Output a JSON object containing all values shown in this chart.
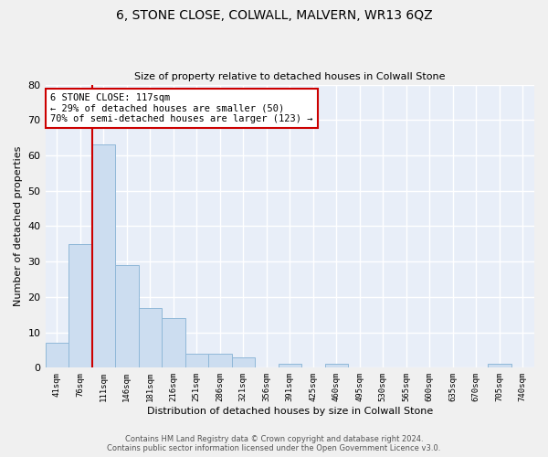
{
  "title": "6, STONE CLOSE, COLWALL, MALVERN, WR13 6QZ",
  "subtitle": "Size of property relative to detached houses in Colwall Stone",
  "xlabel": "Distribution of detached houses by size in Colwall Stone",
  "ylabel": "Number of detached properties",
  "bar_color": "#ccddf0",
  "bar_edge_color": "#90b8d8",
  "background_color": "#e8eef8",
  "grid_color": "#ffffff",
  "fig_color": "#f0f0f0",
  "categories": [
    "41sqm",
    "76sqm",
    "111sqm",
    "146sqm",
    "181sqm",
    "216sqm",
    "251sqm",
    "286sqm",
    "321sqm",
    "356sqm",
    "391sqm",
    "425sqm",
    "460sqm",
    "495sqm",
    "530sqm",
    "565sqm",
    "600sqm",
    "635sqm",
    "670sqm",
    "705sqm",
    "740sqm"
  ],
  "values": [
    7,
    35,
    63,
    29,
    17,
    14,
    4,
    4,
    3,
    0,
    1,
    0,
    1,
    0,
    0,
    0,
    0,
    0,
    0,
    1,
    0
  ],
  "ylim": [
    0,
    80
  ],
  "yticks": [
    0,
    10,
    20,
    30,
    40,
    50,
    60,
    70,
    80
  ],
  "property_line_index": 2,
  "annotation_text": "6 STONE CLOSE: 117sqm\n← 29% of detached houses are smaller (50)\n70% of semi-detached houses are larger (123) →",
  "annotation_box_color": "#ffffff",
  "annotation_box_edge_color": "#cc0000",
  "property_line_color": "#cc0000",
  "footer_line1": "Contains HM Land Registry data © Crown copyright and database right 2024.",
  "footer_line2": "Contains public sector information licensed under the Open Government Licence v3.0."
}
